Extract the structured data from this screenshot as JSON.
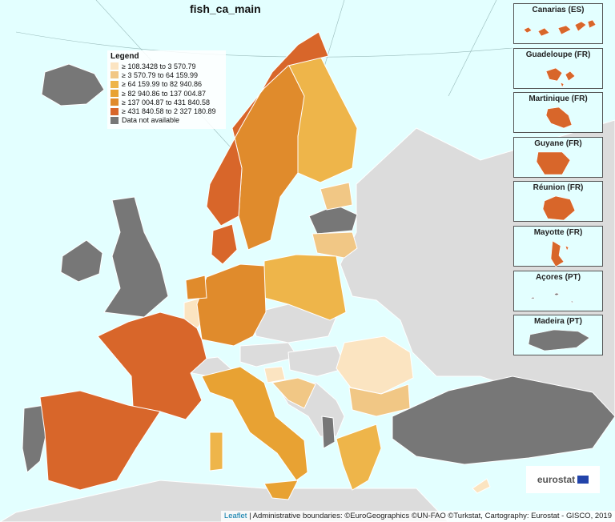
{
  "map": {
    "title": "fish_ca_main",
    "colors": {
      "sea": "#e3ffff",
      "class1": "#fbe4c1",
      "class2": "#f1c785",
      "class3": "#eeb54a",
      "class4": "#e8a233",
      "class5": "#e08b2c",
      "class6": "#d8662a",
      "na": "#777777",
      "nonEU": "#dcdcdc",
      "border": "#ffffff"
    }
  },
  "legend": {
    "title": "Legend",
    "items": [
      {
        "label": "≥ 108.3428 to 3 570.79",
        "color": "#fbe4c1"
      },
      {
        "label": "≥ 3 570.79 to 64 159.99",
        "color": "#f1c785"
      },
      {
        "label": "≥ 64 159.99 to 82 940.86",
        "color": "#eeb54a"
      },
      {
        "label": "≥ 82 940.86 to 137 004.87",
        "color": "#e8a233"
      },
      {
        "label": "≥ 137 004.87 to 431 840.58",
        "color": "#e08b2c"
      },
      {
        "label": "≥ 431 840.58 to 2 327 180.89",
        "color": "#d8662a"
      },
      {
        "label": "Data not available",
        "color": "#777777"
      }
    ]
  },
  "insets": [
    {
      "name": "Canarias (ES)",
      "color": "#d8662a"
    },
    {
      "name": "Guadeloupe (FR)",
      "color": "#d8662a"
    },
    {
      "name": "Martinique (FR)",
      "color": "#d8662a"
    },
    {
      "name": "Guyane (FR)",
      "color": "#d8662a"
    },
    {
      "name": "Réunion (FR)",
      "color": "#d8662a"
    },
    {
      "name": "Mayotte (FR)",
      "color": "#d8662a"
    },
    {
      "name": "Açores (PT)",
      "color": "#777777"
    },
    {
      "name": "Madeira (PT)",
      "color": "#777777"
    }
  ],
  "logo": {
    "text": "eurostat"
  },
  "attribution": {
    "leaflet": "Leaflet",
    "text": " | Administrative boundaries: ©EuroGeographics ©UN-FAO ©Turkstat, Cartography: Eurostat - GISCO, 2019"
  }
}
